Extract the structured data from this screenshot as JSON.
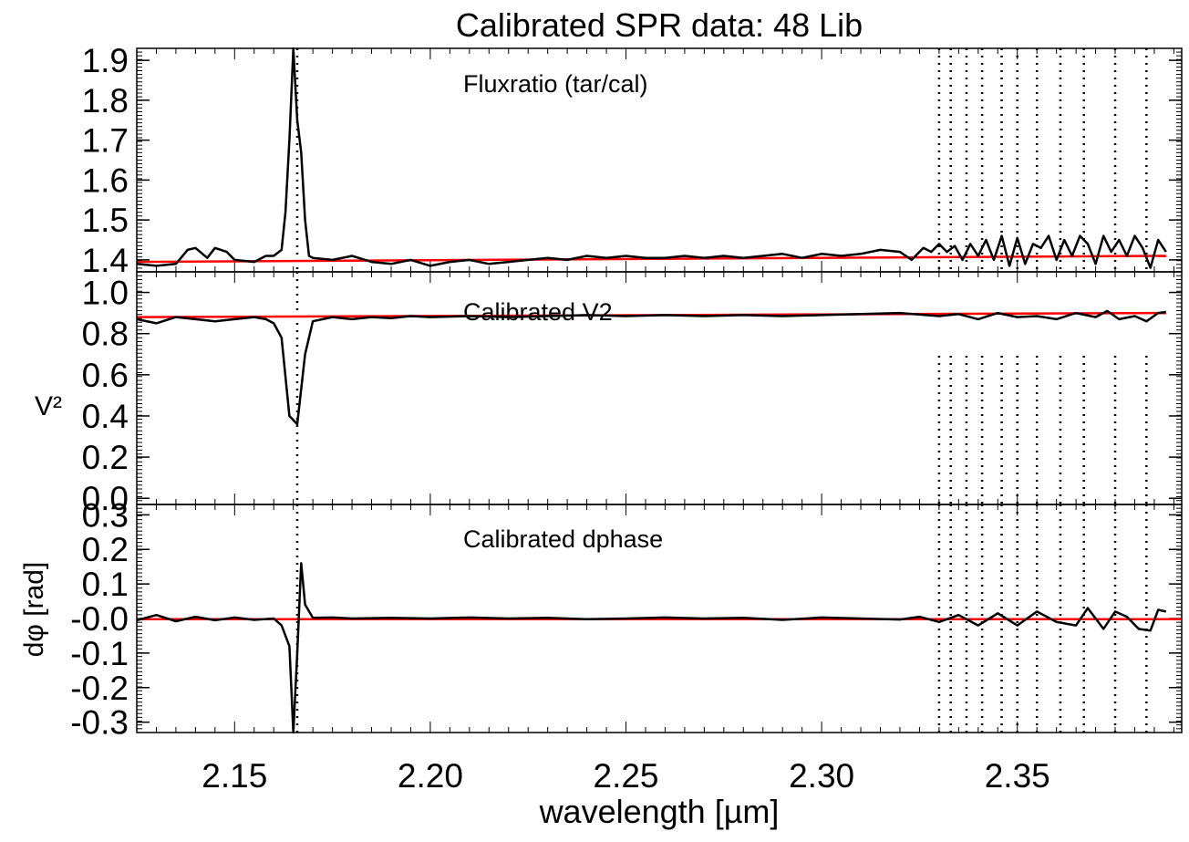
{
  "chart_data": {
    "title": "Calibrated SPR data: 48 Lib",
    "type": "line",
    "xlabel": "wavelength [µm]",
    "xlim": [
      2.125,
      2.392
    ],
    "xticks": [
      "2.15",
      "2.20",
      "2.25",
      "2.30",
      "2.35"
    ],
    "markers": {
      "main_line": 2.166,
      "dotted_lines": [
        2.33,
        2.333,
        2.337,
        2.341,
        2.346,
        2.35,
        2.355,
        2.361,
        2.367,
        2.375,
        2.383
      ],
      "style": "dotted vertical"
    },
    "series_colors": {
      "data": "#000000",
      "fit": "#ff0000"
    },
    "panels": [
      {
        "annotation": "Fluxratio (tar/cal)",
        "ylabel": "",
        "ylim": [
          1.37,
          1.93
        ],
        "yticks": [
          "1.4",
          "1.5",
          "1.6",
          "1.7",
          "1.8",
          "1.9"
        ],
        "fit_line": {
          "x": [
            2.125,
            2.388
          ],
          "y": [
            1.395,
            1.41
          ]
        },
        "data": {
          "x": [
            2.125,
            2.13,
            2.135,
            2.138,
            2.14,
            2.143,
            2.145,
            2.148,
            2.15,
            2.155,
            2.158,
            2.16,
            2.162,
            2.163,
            2.164,
            2.165,
            2.166,
            2.167,
            2.168,
            2.169,
            2.17,
            2.175,
            2.18,
            2.185,
            2.19,
            2.195,
            2.2,
            2.205,
            2.21,
            2.215,
            2.22,
            2.225,
            2.23,
            2.235,
            2.24,
            2.245,
            2.25,
            2.255,
            2.26,
            2.265,
            2.27,
            2.275,
            2.28,
            2.285,
            2.29,
            2.295,
            2.3,
            2.305,
            2.31,
            2.315,
            2.32,
            2.323,
            2.326,
            2.328,
            2.33,
            2.332,
            2.334,
            2.336,
            2.338,
            2.34,
            2.342,
            2.344,
            2.346,
            2.348,
            2.35,
            2.352,
            2.354,
            2.356,
            2.358,
            2.36,
            2.362,
            2.364,
            2.366,
            2.368,
            2.37,
            2.372,
            2.374,
            2.376,
            2.378,
            2.38,
            2.382,
            2.384,
            2.386,
            2.388
          ],
          "y": [
            1.39,
            1.385,
            1.39,
            1.425,
            1.43,
            1.405,
            1.43,
            1.42,
            1.4,
            1.395,
            1.41,
            1.41,
            1.425,
            1.52,
            1.7,
            1.93,
            1.75,
            1.67,
            1.5,
            1.41,
            1.405,
            1.4,
            1.41,
            1.395,
            1.39,
            1.4,
            1.385,
            1.395,
            1.4,
            1.39,
            1.395,
            1.4,
            1.405,
            1.4,
            1.41,
            1.405,
            1.41,
            1.405,
            1.405,
            1.41,
            1.405,
            1.41,
            1.405,
            1.41,
            1.415,
            1.405,
            1.415,
            1.41,
            1.415,
            1.425,
            1.42,
            1.4,
            1.43,
            1.42,
            1.44,
            1.42,
            1.435,
            1.4,
            1.44,
            1.41,
            1.45,
            1.4,
            1.46,
            1.385,
            1.455,
            1.39,
            1.44,
            1.43,
            1.46,
            1.4,
            1.45,
            1.41,
            1.46,
            1.44,
            1.39,
            1.46,
            1.42,
            1.45,
            1.41,
            1.46,
            1.43,
            1.38,
            1.45,
            1.42
          ]
        }
      },
      {
        "annotation": "Calibrated V2",
        "ylabel": "V²",
        "ylim": [
          -0.03,
          1.1
        ],
        "yticks": [
          "0.0",
          "0.2",
          "0.4",
          "0.6",
          "0.8",
          "1.0"
        ],
        "fit_line": {
          "x": [
            2.125,
            2.388
          ],
          "y": [
            0.88,
            0.9
          ]
        },
        "data": {
          "x": [
            2.125,
            2.13,
            2.135,
            2.14,
            2.145,
            2.15,
            2.155,
            2.158,
            2.16,
            2.162,
            2.164,
            2.166,
            2.168,
            2.17,
            2.175,
            2.18,
            2.185,
            2.19,
            2.195,
            2.2,
            2.21,
            2.22,
            2.23,
            2.24,
            2.25,
            2.26,
            2.27,
            2.28,
            2.29,
            2.3,
            2.31,
            2.32,
            2.33,
            2.335,
            2.34,
            2.345,
            2.35,
            2.355,
            2.36,
            2.365,
            2.37,
            2.373,
            2.376,
            2.38,
            2.383,
            2.386,
            2.388
          ],
          "y": [
            0.87,
            0.85,
            0.88,
            0.87,
            0.86,
            0.87,
            0.88,
            0.87,
            0.85,
            0.78,
            0.4,
            0.36,
            0.7,
            0.86,
            0.88,
            0.87,
            0.88,
            0.875,
            0.885,
            0.88,
            0.885,
            0.88,
            0.885,
            0.89,
            0.885,
            0.89,
            0.885,
            0.89,
            0.885,
            0.89,
            0.895,
            0.9,
            0.885,
            0.895,
            0.87,
            0.9,
            0.88,
            0.885,
            0.87,
            0.9,
            0.88,
            0.91,
            0.87,
            0.885,
            0.86,
            0.9,
            0.905
          ]
        }
      },
      {
        "annotation": "Calibrated dphase",
        "ylabel": "dφ [rad]",
        "ylim": [
          -0.33,
          0.33
        ],
        "yticks": [
          "-0.3",
          "-0.2",
          "-0.1",
          "-0.0",
          "0.1",
          "0.2",
          "0.3"
        ],
        "fit_line": {
          "x": [
            2.125,
            2.392
          ],
          "y": [
            -0.002,
            -0.002
          ]
        },
        "data": {
          "x": [
            2.125,
            2.13,
            2.135,
            2.14,
            2.145,
            2.15,
            2.155,
            2.16,
            2.162,
            2.164,
            2.165,
            2.166,
            2.167,
            2.168,
            2.17,
            2.175,
            2.18,
            2.19,
            2.2,
            2.21,
            2.22,
            2.23,
            2.24,
            2.25,
            2.26,
            2.27,
            2.28,
            2.29,
            2.3,
            2.31,
            2.32,
            2.325,
            2.33,
            2.335,
            2.34,
            2.345,
            2.35,
            2.355,
            2.36,
            2.365,
            2.368,
            2.372,
            2.375,
            2.378,
            2.381,
            2.384,
            2.386,
            2.388
          ],
          "y": [
            -0.005,
            0.01,
            -0.008,
            0.005,
            -0.005,
            0.003,
            -0.004,
            0.0,
            -0.02,
            -0.08,
            -0.33,
            -0.1,
            0.16,
            0.04,
            0.002,
            0.003,
            0.0,
            0.002,
            0.0,
            0.003,
            0.0,
            0.002,
            -0.002,
            0.0,
            0.003,
            0.0,
            0.002,
            -0.004,
            0.003,
            0.0,
            -0.003,
            0.005,
            -0.01,
            0.01,
            -0.02,
            0.015,
            -0.02,
            0.02,
            -0.01,
            -0.02,
            0.03,
            -0.03,
            0.02,
            0.005,
            -0.03,
            -0.035,
            0.025,
            0.02
          ]
        }
      }
    ]
  }
}
